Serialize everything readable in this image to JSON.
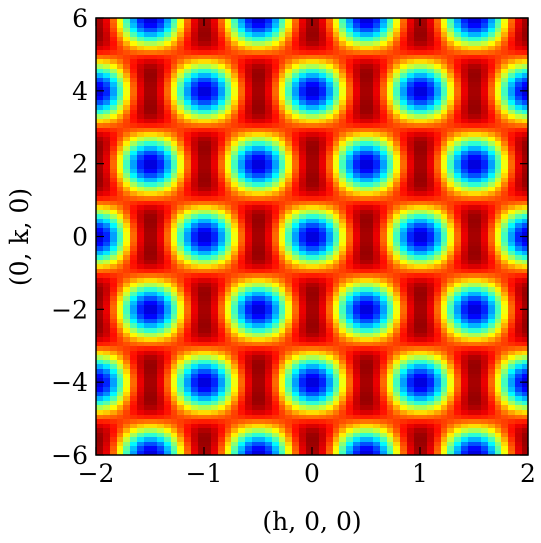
{
  "chart_data": {
    "type": "heatmap",
    "title": "",
    "xlabel": "(h, 0, 0)",
    "ylabel": "(0, k, 0)",
    "xlim": [
      -2,
      2
    ],
    "ylim": [
      -6,
      6
    ],
    "x_ticks": [
      -2,
      -1,
      0,
      1,
      2
    ],
    "x_tick_labels": [
      "−2",
      "−1",
      "0",
      "1",
      "2"
    ],
    "y_ticks": [
      -6,
      -4,
      -2,
      0,
      2,
      4,
      6
    ],
    "y_tick_labels": [
      "−6",
      "−4",
      "−2",
      "0",
      "2",
      "4",
      "6"
    ],
    "colormap": "jet",
    "colorbar": false,
    "grid": false,
    "maxima": [
      {
        "x": 0.0,
        "y": 0.0,
        "level": 0.0
      },
      {
        "x": 0.0,
        "y": 4.0,
        "level": 0.12
      },
      {
        "x": 0.0,
        "y": -4.0,
        "level": 0.12
      },
      {
        "x": 2.0,
        "y": 6.0,
        "level": 0.02
      },
      {
        "x": -2.0,
        "y": 6.0,
        "level": 0.02
      },
      {
        "x": 2.0,
        "y": -6.0,
        "level": 0.02
      },
      {
        "x": -2.0,
        "y": -6.0,
        "level": 0.02
      },
      {
        "x": -0.5,
        "y": 2.0,
        "level": 0.98
      },
      {
        "x": 0.5,
        "y": 2.0,
        "level": 0.98
      },
      {
        "x": -0.5,
        "y": -2.0,
        "level": 0.98
      },
      {
        "x": 0.5,
        "y": -2.0,
        "level": 0.98
      },
      {
        "x": -1.5,
        "y": 4.0,
        "level": 0.98
      },
      {
        "x": 1.5,
        "y": 4.0,
        "level": 0.98
      },
      {
        "x": -1.5,
        "y": -4.0,
        "level": 0.98
      },
      {
        "x": 1.5,
        "y": -4.0,
        "level": 0.98
      },
      {
        "x": -1.0,
        "y": 0.0,
        "level": 0.95
      },
      {
        "x": 1.0,
        "y": 0.0,
        "level": 0.95
      }
    ]
  }
}
